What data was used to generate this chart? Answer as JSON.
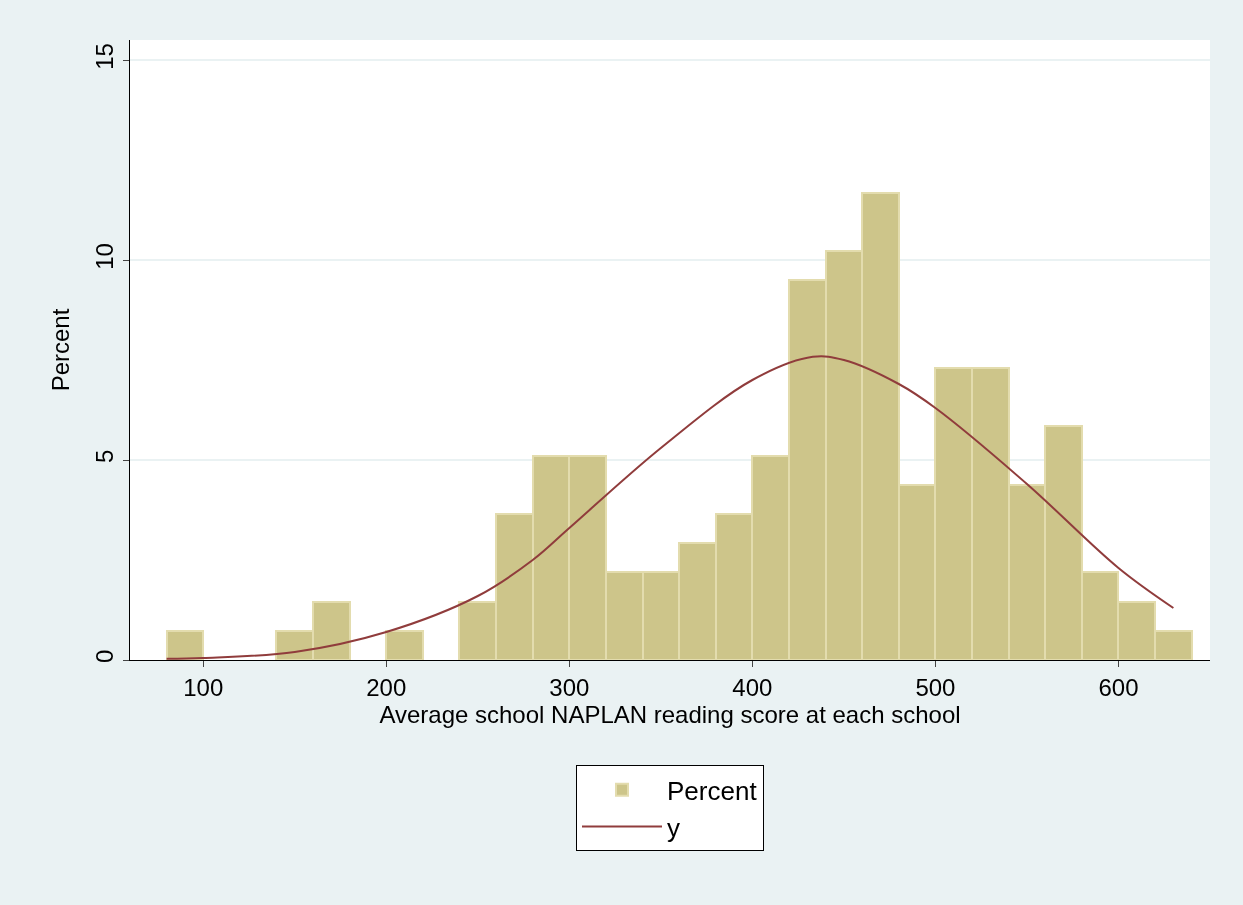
{
  "chart_data": {
    "type": "histogram",
    "xlabel": "Average school NAPLAN reading score at each school",
    "ylabel": "Percent",
    "bins": [
      80,
      100,
      120,
      140,
      160,
      180,
      200,
      220,
      240,
      260,
      280,
      300,
      320,
      340,
      360,
      380,
      400,
      420,
      440,
      460,
      480,
      500,
      520,
      540,
      560,
      580,
      600,
      620,
      640
    ],
    "series": [
      {
        "name": "Percent",
        "color": "#cdc58a",
        "values": [
          0.73,
          0,
          0,
          0.73,
          1.46,
          0,
          0.73,
          0,
          1.46,
          3.65,
          5.11,
          5.11,
          2.19,
          2.19,
          2.92,
          3.65,
          5.11,
          9.49,
          10.22,
          11.68,
          4.38,
          7.3,
          7.3,
          4.38,
          5.84,
          2.19,
          1.46,
          0.73
        ]
      },
      {
        "name": "y",
        "type": "line",
        "color": "#903c3c",
        "x": [
          80,
          100,
          150,
          200,
          250,
          280,
          300,
          350,
          400,
          433,
          450,
          480,
          500,
          550,
          600,
          630
        ],
        "values": [
          0.03,
          0.05,
          0.2,
          0.7,
          1.6,
          2.5,
          3.3,
          5.3,
          7.0,
          7.58,
          7.5,
          6.9,
          6.3,
          4.4,
          2.3,
          1.3
        ]
      }
    ],
    "xlim": [
      60,
      650
    ],
    "xticks": [
      100,
      200,
      300,
      400,
      500,
      600
    ],
    "ylim": [
      0,
      15.5
    ],
    "yticks": [
      0,
      5,
      10,
      15
    ],
    "grid": "y",
    "legend": "bottom"
  }
}
